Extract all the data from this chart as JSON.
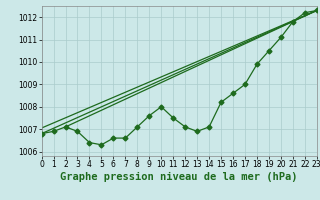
{
  "title": "Graphe pression niveau de la mer (hPa)",
  "x_values": [
    0,
    1,
    2,
    3,
    4,
    5,
    6,
    7,
    8,
    9,
    10,
    11,
    12,
    13,
    14,
    15,
    16,
    17,
    18,
    19,
    20,
    21,
    22,
    23
  ],
  "line_data": [
    1006.8,
    1006.9,
    1007.1,
    1006.9,
    1006.4,
    1006.3,
    1006.6,
    1006.6,
    1007.1,
    1007.6,
    1008.0,
    1007.5,
    1007.1,
    1006.9,
    1007.1,
    1008.2,
    1008.6,
    1009.0,
    1009.9,
    1010.5,
    1011.1,
    1011.8,
    1012.2,
    1012.3
  ],
  "straight_lines": [
    {
      "x0": 0,
      "y0": 1006.8,
      "x1": 23,
      "y1": 1012.3
    },
    {
      "x0": 0,
      "y0": 1007.05,
      "x1": 23,
      "y1": 1012.3
    },
    {
      "x0": 2,
      "y0": 1007.1,
      "x1": 23,
      "y1": 1012.3
    }
  ],
  "ylim": [
    1005.8,
    1012.5
  ],
  "xlim": [
    0,
    23
  ],
  "yticks": [
    1006,
    1007,
    1008,
    1009,
    1010,
    1011,
    1012
  ],
  "xticks": [
    0,
    1,
    2,
    3,
    4,
    5,
    6,
    7,
    8,
    9,
    10,
    11,
    12,
    13,
    14,
    15,
    16,
    17,
    18,
    19,
    20,
    21,
    22,
    23
  ],
  "line_color": "#1e6b1e",
  "bg_color": "#cce8e8",
  "grid_color": "#aacccc",
  "marker": "D",
  "marker_size": 2.5,
  "line_width": 0.9,
  "title_fontsize": 7.5,
  "tick_fontsize": 5.5
}
